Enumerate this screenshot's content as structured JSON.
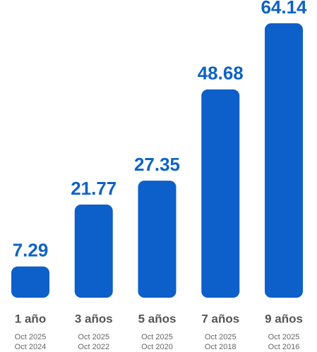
{
  "chart_data": {
    "type": "bar",
    "categories": [
      "1 año",
      "3 años",
      "5 años",
      "7 años",
      "9 años"
    ],
    "values": [
      7.29,
      21.77,
      27.35,
      48.68,
      64.14
    ],
    "date_ranges": [
      [
        "Oct 2025",
        "Oct 2024"
      ],
      [
        "Oct 2025",
        "Oct 2022"
      ],
      [
        "Oct 2025",
        "Oct 2020"
      ],
      [
        "Oct 2025",
        "Oct 2018"
      ],
      [
        "Oct 2025",
        "Oct 2016"
      ]
    ],
    "color": "#0d5fc9"
  }
}
